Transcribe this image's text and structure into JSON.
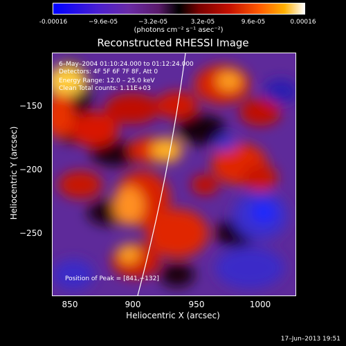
{
  "colorbar": {
    "ticks": [
      "-0.00016",
      "−9.6e-05",
      "−3.2e-05",
      "3.2e-05",
      "9.6e-05",
      "0.00016"
    ],
    "units_text": "(photons cm⁻² s⁻¹ asec⁻²)"
  },
  "title": "Reconstructed RHESSI Image",
  "annotations": {
    "time": "6–May–2004 01:10:24.000 to 01:12:24.000",
    "detectors": "Detectors: 4F 5F 6F 7F 8F, Att 0",
    "energy": "Energy Range: 12.0 – 25.0 keV",
    "clean": "Clean     Total counts: 1.11E+03",
    "peak": "Position of Peak = [841,−132]"
  },
  "axes": {
    "xlabel": "Heliocentric X (arcsec)",
    "ylabel": "Heliocentric Y (arcsec)",
    "xticks": [
      "850",
      "900",
      "950",
      "1000"
    ],
    "yticks": [
      "−150",
      "−200",
      "−250"
    ]
  },
  "timestamp": "17–Jun–2013 19:51",
  "colors": {
    "limb": "#ffffff",
    "background": "#000000"
  }
}
